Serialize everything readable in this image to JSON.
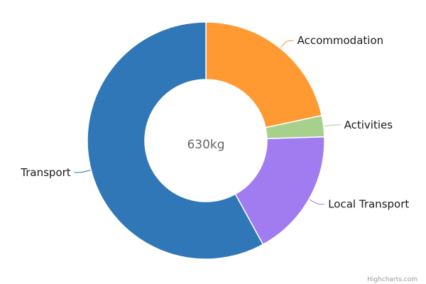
{
  "chart_data": {
    "type": "pie",
    "donut": true,
    "center_label": "630kg",
    "slices": [
      {
        "name": "Accommodation",
        "percent": 21.6,
        "color": "#ff9a33"
      },
      {
        "name": "Activities",
        "percent": 2.9,
        "color": "#a8d08d"
      },
      {
        "name": "Local Transport",
        "percent": 17.5,
        "color": "#a07cf0"
      },
      {
        "name": "Transport",
        "percent": 58.0,
        "color": "#2f77b6"
      }
    ]
  },
  "credit": "Highcharts.com"
}
